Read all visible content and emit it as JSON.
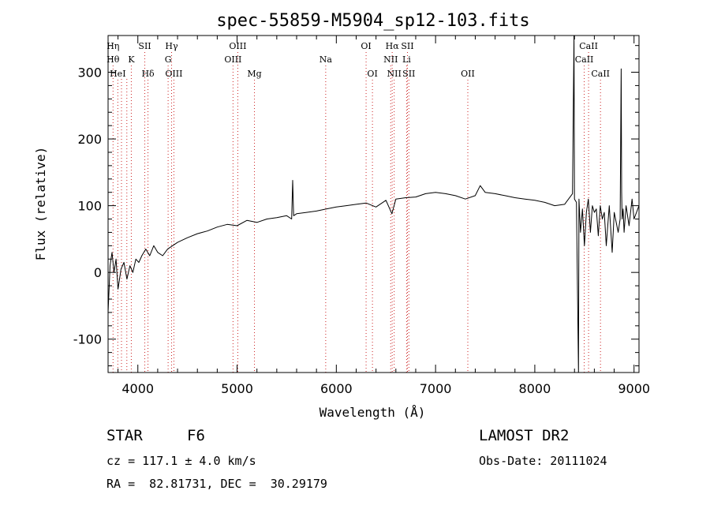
{
  "chart_data": {
    "type": "line",
    "title": "spec-55859-M5904_sp12-103.fits",
    "xlabel": "Wavelength (Å)",
    "ylabel": "Flux (relative)",
    "xlim": [
      3700,
      9050
    ],
    "ylim": [
      -150,
      355
    ],
    "xticks": [
      4000,
      5000,
      6000,
      7000,
      8000,
      9000
    ],
    "yticks": [
      -100,
      0,
      100,
      200,
      300
    ],
    "grid": false,
    "line_color": "#000000",
    "marker_color": "#cc2222",
    "series": [
      {
        "x": [
          3700,
          3720,
          3740,
          3760,
          3780,
          3800,
          3830,
          3860,
          3890,
          3920,
          3950,
          3980,
          4010,
          4040,
          4080,
          4120,
          4160,
          4200,
          4250,
          4300,
          4350,
          4400,
          4500,
          4600,
          4700,
          4800,
          4900,
          5000,
          5100,
          5200,
          5300,
          5400,
          5500,
          5550,
          5560,
          5570,
          5600,
          5700,
          5800,
          5900,
          6000,
          6100,
          6200,
          6300,
          6400,
          6500,
          6560,
          6600,
          6700,
          6800,
          6900,
          7000,
          7100,
          7200,
          7300,
          7400,
          7450,
          7500,
          7600,
          7700,
          7800,
          7900,
          8000,
          8100,
          8200,
          8300,
          8380,
          8395,
          8400,
          8420,
          8440,
          8445,
          8460,
          8480,
          8500,
          8520,
          8540,
          8560,
          8580,
          8600,
          8620,
          8640,
          8660,
          8680,
          8700,
          8720,
          8750,
          8780,
          8800,
          8840,
          8860,
          8870,
          8875,
          8880,
          8890,
          8900,
          8920,
          8950,
          8980,
          9000,
          9050
        ],
        "y": [
          -60,
          10,
          30,
          0,
          20,
          -25,
          5,
          15,
          -10,
          10,
          0,
          20,
          15,
          25,
          35,
          25,
          40,
          30,
          25,
          35,
          40,
          45,
          52,
          58,
          62,
          68,
          72,
          70,
          78,
          75,
          80,
          82,
          85,
          80,
          138,
          85,
          88,
          90,
          92,
          95,
          98,
          100,
          102,
          104,
          98,
          108,
          88,
          110,
          112,
          113,
          118,
          120,
          118,
          115,
          110,
          115,
          130,
          120,
          118,
          115,
          112,
          110,
          108,
          105,
          100,
          102,
          118,
          355,
          110,
          105,
          -150,
          110,
          60,
          95,
          40,
          90,
          110,
          60,
          100,
          90,
          95,
          55,
          100,
          80,
          90,
          40,
          100,
          30,
          90,
          60,
          80,
          305,
          120,
          80,
          95,
          60,
          100,
          70,
          110,
          80,
          100
        ]
      }
    ],
    "lines": [
      {
        "x": 3750,
        "labels": [
          {
            "row": 1,
            "text": "Hη"
          },
          {
            "row": 2,
            "text": "Hθ"
          }
        ]
      },
      {
        "x": 3798,
        "labels": [
          {
            "row": 3,
            "text": "HeI"
          }
        ]
      },
      {
        "x": 3835,
        "labels": []
      },
      {
        "x": 3889,
        "labels": []
      },
      {
        "x": 3934,
        "labels": [
          {
            "row": 2,
            "text": "K"
          }
        ]
      },
      {
        "x": 4070,
        "labels": [
          {
            "row": 1,
            "text": "SII"
          }
        ]
      },
      {
        "x": 4102,
        "labels": [
          {
            "row": 3,
            "text": "Hδ"
          }
        ]
      },
      {
        "x": 4305,
        "labels": [
          {
            "row": 2,
            "text": "G"
          }
        ]
      },
      {
        "x": 4340,
        "labels": [
          {
            "row": 1,
            "text": "Hγ"
          }
        ]
      },
      {
        "x": 4363,
        "labels": [
          {
            "row": 3,
            "text": "OIII"
          }
        ]
      },
      {
        "x": 4959,
        "labels": [
          {
            "row": 2,
            "text": "OIII"
          }
        ]
      },
      {
        "x": 5007,
        "labels": [
          {
            "row": 1,
            "text": "OIII"
          }
        ]
      },
      {
        "x": 5175,
        "labels": [
          {
            "row": 3,
            "text": "Mg"
          }
        ]
      },
      {
        "x": 5893,
        "labels": [
          {
            "row": 2,
            "text": "Na"
          }
        ]
      },
      {
        "x": 6300,
        "labels": [
          {
            "row": 1,
            "text": "OI"
          }
        ]
      },
      {
        "x": 6364,
        "labels": [
          {
            "row": 3,
            "text": "OI"
          }
        ]
      },
      {
        "x": 6548,
        "labels": [
          {
            "row": 2,
            "text": "NII"
          }
        ]
      },
      {
        "x": 6563,
        "labels": [
          {
            "row": 1,
            "text": "Hα"
          }
        ]
      },
      {
        "x": 6583,
        "labels": [
          {
            "row": 3,
            "text": "NII"
          }
        ]
      },
      {
        "x": 6708,
        "labels": [
          {
            "row": 2,
            "text": "Li"
          }
        ]
      },
      {
        "x": 6717,
        "labels": [
          {
            "row": 1,
            "text": "SII"
          }
        ]
      },
      {
        "x": 6731,
        "labels": [
          {
            "row": 3,
            "text": "SII"
          }
        ]
      },
      {
        "x": 7325,
        "labels": [
          {
            "row": 3,
            "text": "OII"
          }
        ]
      },
      {
        "x": 8498,
        "labels": [
          {
            "row": 2,
            "text": "CaII"
          }
        ]
      },
      {
        "x": 8542,
        "labels": [
          {
            "row": 1,
            "text": "CaII"
          }
        ]
      },
      {
        "x": 8662,
        "labels": [
          {
            "row": 3,
            "text": "CaII"
          }
        ]
      }
    ]
  },
  "info": {
    "object_class": "STAR",
    "subclass": "F6",
    "survey": "LAMOST DR2",
    "cz": "cz = 117.1 ± 4.0 km/s",
    "obs_date": "Obs-Date: 20111024",
    "coords": "RA =  82.81731, DEC =  30.29179"
  }
}
